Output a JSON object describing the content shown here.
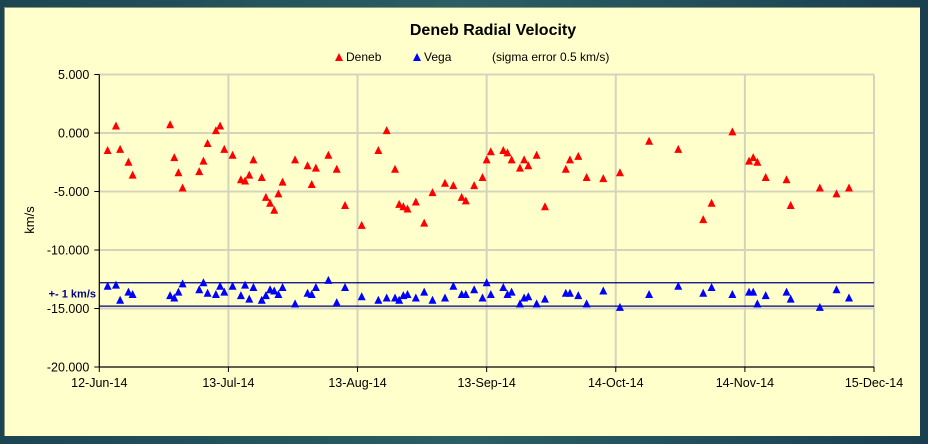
{
  "chart_data": {
    "type": "scatter",
    "title": "Deneb Radial Velocity",
    "xlabel": "",
    "ylabel": "km/s",
    "ylim": [
      -20,
      5
    ],
    "xlim": [
      "2014-06-12",
      "2014-12-15"
    ],
    "yticks": [
      "5.000",
      "0.000",
      "-5.000",
      "-10.000",
      "-15.000",
      "-20.000"
    ],
    "ytick_values": [
      5,
      0,
      -5,
      -10,
      -15,
      -20
    ],
    "xticks": [
      "12-Jun-14",
      "13-Jul-14",
      "13-Aug-14",
      "13-Sep-14",
      "14-Oct-14",
      "14-Nov-14",
      "15-Dec-14"
    ],
    "xtick_dates": [
      "2014-06-12",
      "2014-07-13",
      "2014-08-13",
      "2014-09-13",
      "2014-10-14",
      "2014-11-14",
      "2014-12-15"
    ],
    "grid": true,
    "legend_position": "top",
    "legend_note": "(sigma error 0.5 km/s)",
    "band": {
      "label": "+- 1 km/s",
      "upper": -12.8,
      "lower": -14.8,
      "color": "#000080"
    },
    "dates": [
      "2014-06-14",
      "2014-06-16",
      "2014-06-17",
      "2014-06-19",
      "2014-06-20",
      "2014-06-29",
      "2014-06-30",
      "2014-07-01",
      "2014-07-02",
      "2014-07-06",
      "2014-07-07",
      "2014-07-08",
      "2014-07-10",
      "2014-07-11",
      "2014-07-12",
      "2014-07-14",
      "2014-07-16",
      "2014-07-17",
      "2014-07-18",
      "2014-07-19",
      "2014-07-21",
      "2014-07-22",
      "2014-07-23",
      "2014-07-24",
      "2014-07-25",
      "2014-07-26",
      "2014-07-29",
      "2014-08-01",
      "2014-08-02",
      "2014-08-03",
      "2014-08-06",
      "2014-08-08",
      "2014-08-10",
      "2014-08-14",
      "2014-08-18",
      "2014-08-20",
      "2014-08-22",
      "2014-08-23",
      "2014-08-24",
      "2014-08-25",
      "2014-08-27",
      "2014-08-29",
      "2014-08-31",
      "2014-09-03",
      "2014-09-05",
      "2014-09-07",
      "2014-09-08",
      "2014-09-10",
      "2014-09-12",
      "2014-09-13",
      "2014-09-14",
      "2014-09-17",
      "2014-09-18",
      "2014-09-19",
      "2014-09-21",
      "2014-09-22",
      "2014-09-23",
      "2014-09-25",
      "2014-09-27",
      "2014-10-02",
      "2014-10-03",
      "2014-10-05",
      "2014-10-07",
      "2014-10-11",
      "2014-10-15",
      "2014-10-22",
      "2014-10-29",
      "2014-11-04",
      "2014-11-06",
      "2014-11-11",
      "2014-11-15",
      "2014-11-16",
      "2014-11-17",
      "2014-11-19",
      "2014-11-24",
      "2014-11-25",
      "2014-12-02",
      "2014-12-06",
      "2014-12-09"
    ],
    "series": [
      {
        "name": "Deneb",
        "color": "#ff0000",
        "marker": "triangle",
        "values": [
          -1.5,
          0.6,
          -1.4,
          -2.5,
          -3.6,
          0.7,
          -2.1,
          -3.4,
          -4.7,
          -3.3,
          -2.4,
          -0.9,
          0.2,
          0.6,
          -1.4,
          -1.9,
          -4.0,
          -4.1,
          -3.6,
          -2.3,
          -3.8,
          -5.5,
          -6.0,
          -6.6,
          -5.2,
          -4.2,
          -2.3,
          -2.8,
          -4.4,
          -3.0,
          -1.9,
          -3.1,
          -6.2,
          -7.9,
          -1.5,
          0.2,
          -3.1,
          -6.1,
          -6.3,
          -6.5,
          -5.9,
          -7.7,
          -5.1,
          -4.3,
          -4.5,
          -5.5,
          -5.8,
          -4.5,
          -3.8,
          -2.3,
          -1.6,
          -1.5,
          -1.7,
          -2.3,
          -3.0,
          -2.3,
          -2.8,
          -1.9,
          -6.3,
          -3.1,
          -2.3,
          -2.0,
          -3.8,
          -3.9,
          -3.4,
          -0.7,
          -1.4,
          -7.4,
          -6.0,
          0.1,
          -2.4,
          -2.1,
          -2.5,
          -3.8,
          -4.0,
          -6.2,
          -4.7,
          -5.2,
          -4.7
        ]
      },
      {
        "name": "Vega",
        "color": "#0000ff",
        "marker": "triangle",
        "values": [
          -13.1,
          -13.0,
          -14.3,
          -13.6,
          -13.8,
          -13.9,
          -14.1,
          -13.6,
          -12.9,
          -13.4,
          -12.8,
          -13.7,
          -13.8,
          -13.1,
          -13.6,
          -13.1,
          -13.9,
          -13.0,
          -14.2,
          -13.2,
          -14.3,
          -13.9,
          -13.4,
          -13.5,
          -13.8,
          -13.2,
          -14.6,
          -13.7,
          -13.8,
          -13.2,
          -12.6,
          -14.5,
          -13.2,
          -14.0,
          -14.3,
          -14.1,
          -14.1,
          -14.3,
          -13.9,
          -13.8,
          -14.1,
          -13.6,
          -14.3,
          -14.1,
          -13.1,
          -13.8,
          -13.8,
          -13.4,
          -14.1,
          -12.8,
          -13.8,
          -13.2,
          -13.8,
          -13.6,
          -14.6,
          -14.1,
          -14.0,
          -14.6,
          -14.2,
          -13.7,
          -13.7,
          -13.9,
          -14.6,
          -13.5,
          -14.9,
          -13.8,
          -13.1,
          -13.7,
          -13.2,
          -13.8,
          -13.6,
          -13.6,
          -14.6,
          -13.9,
          -13.6,
          -14.2,
          -14.9,
          -13.4,
          -14.1
        ]
      }
    ]
  }
}
